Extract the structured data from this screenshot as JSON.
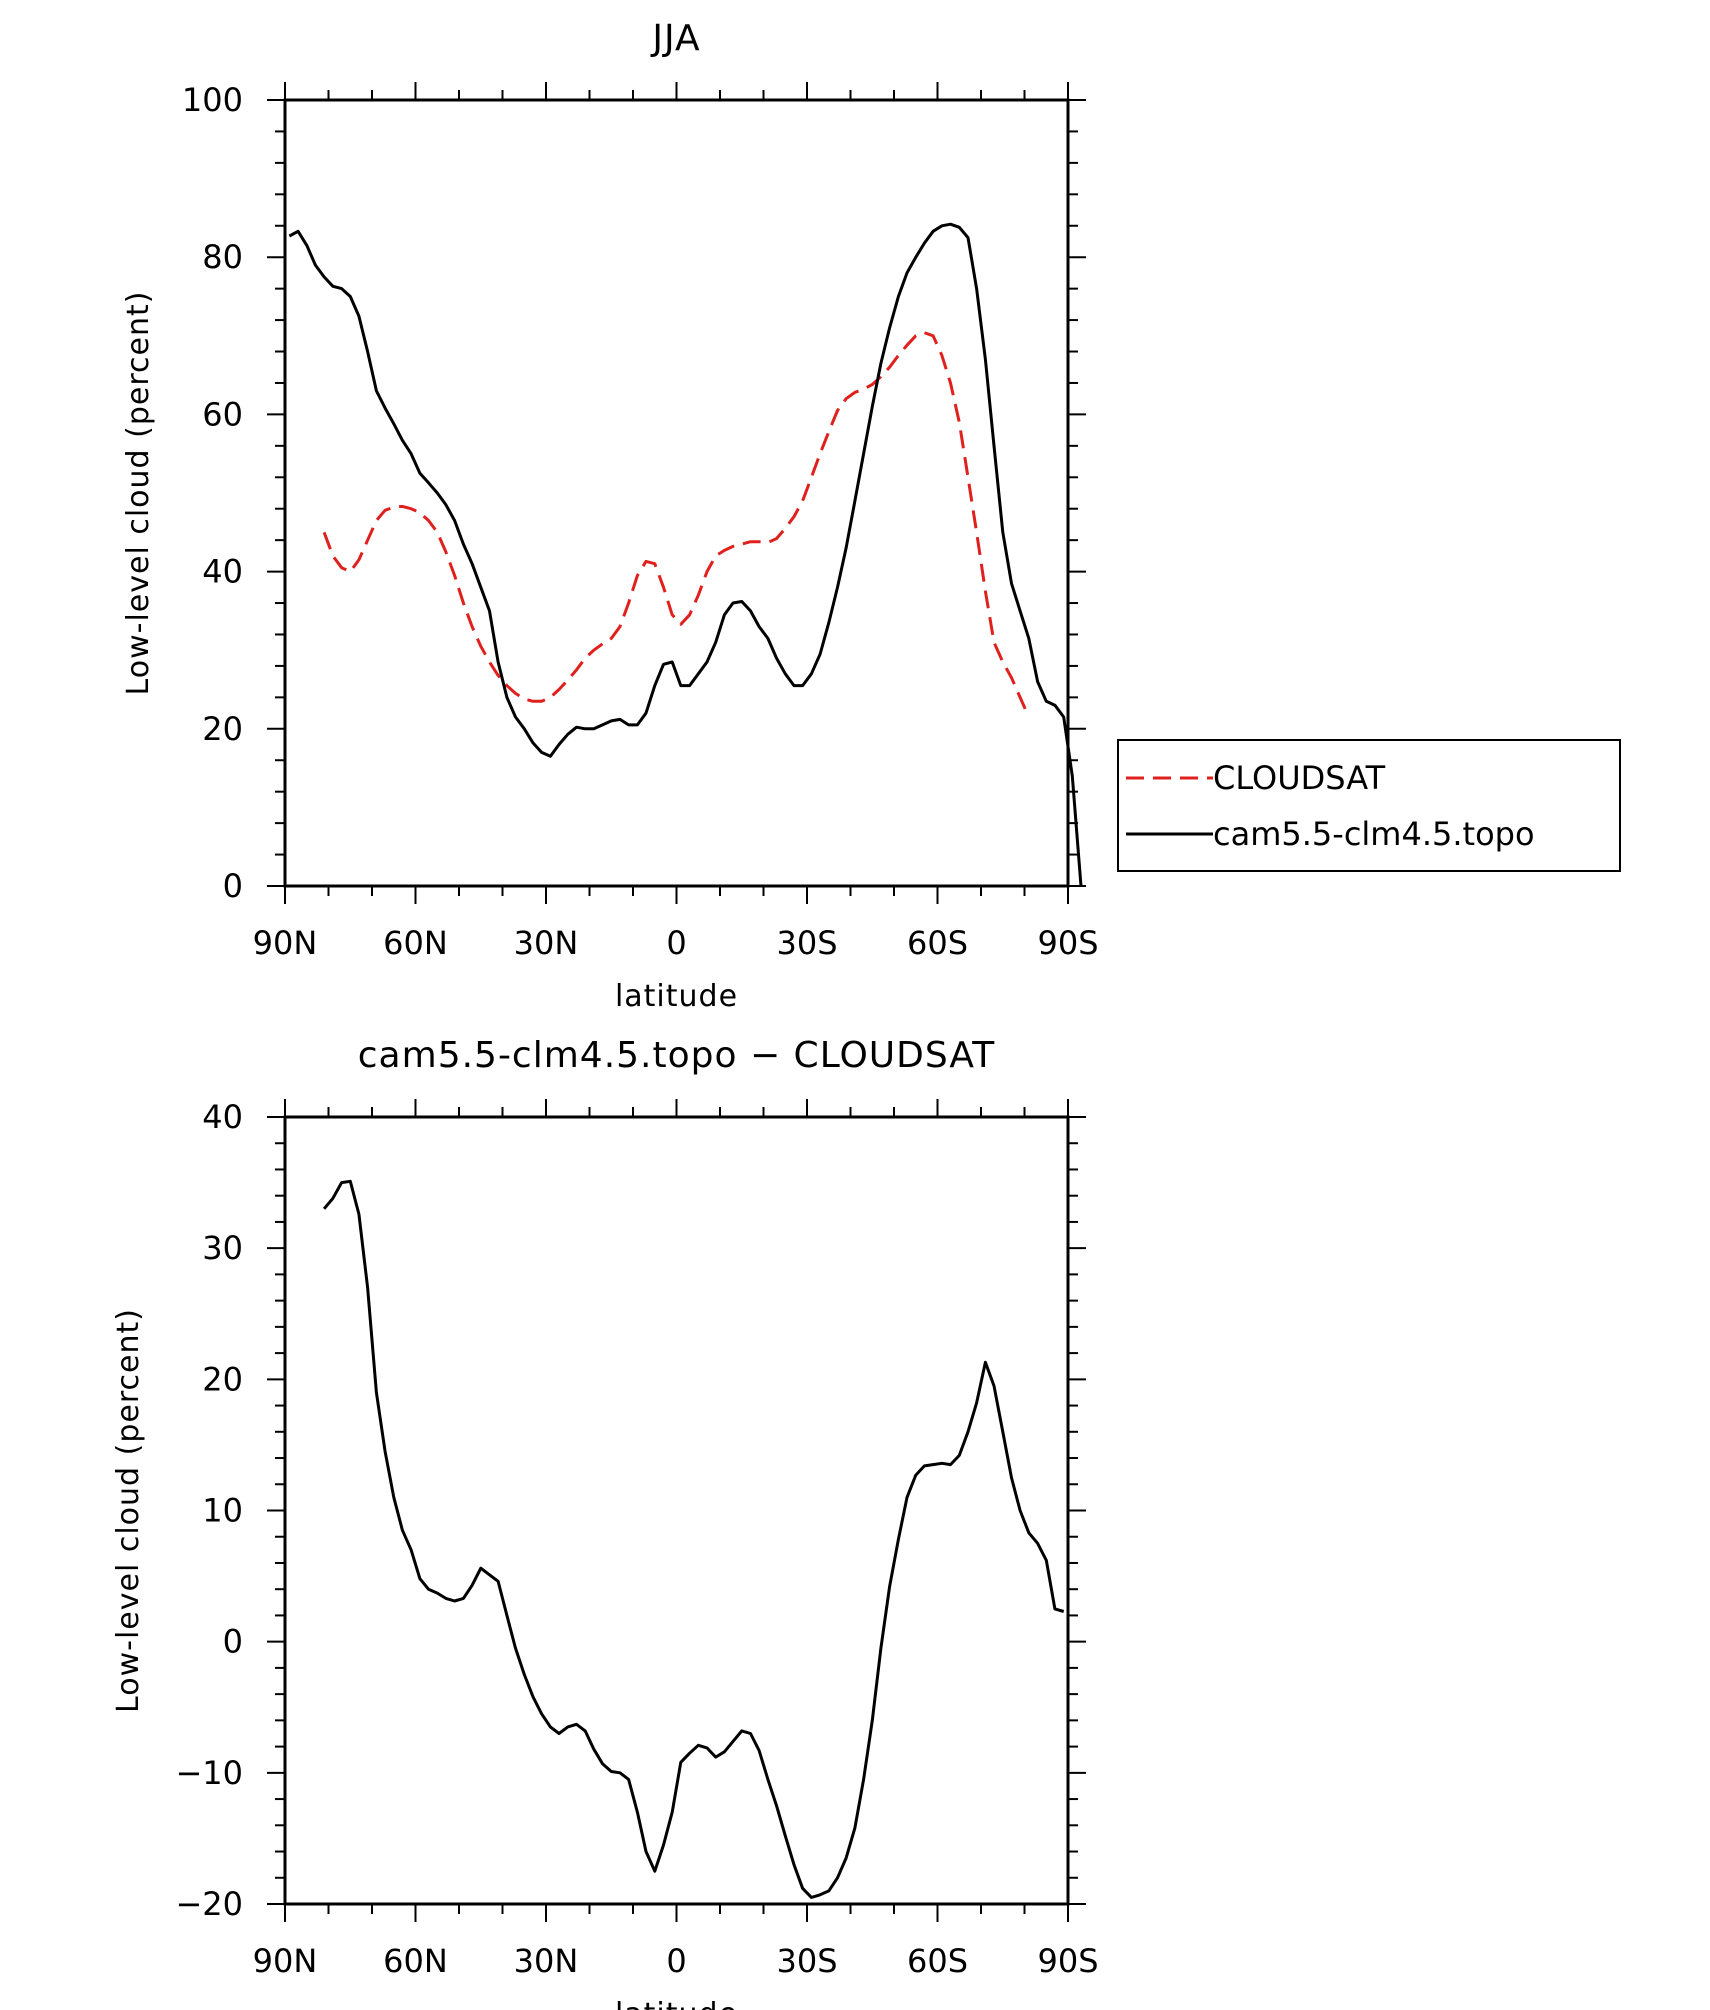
{
  "chart_data": [
    {
      "type": "line",
      "title": "JJA",
      "xlabel": "latitude",
      "ylabel": "Low-level cloud (percent)",
      "xlim": [
        90,
        -90
      ],
      "ylim": [
        0,
        100
      ],
      "yticks": [
        0,
        20,
        40,
        60,
        80,
        100
      ],
      "xticks": [
        {
          "value": 90,
          "label": "90N"
        },
        {
          "value": 60,
          "label": "60N"
        },
        {
          "value": 30,
          "label": "30N"
        },
        {
          "value": 0,
          "label": "0"
        },
        {
          "value": -30,
          "label": "30S"
        },
        {
          "value": -60,
          "label": "60S"
        },
        {
          "value": -90,
          "label": "90S"
        }
      ],
      "legend": {
        "position": "right",
        "entries": [
          "CLOUDSAT",
          "cam5.5-clm4.5.topo"
        ]
      },
      "series": [
        {
          "name": "CLOUDSAT",
          "color": "#e0201c",
          "dash": true,
          "points": [
            [
              81,
              45
            ],
            [
              79,
              42
            ],
            [
              77,
              40.5
            ],
            [
              75,
              40
            ],
            [
              73,
              41.5
            ],
            [
              71,
              44
            ],
            [
              69,
              46.5
            ],
            [
              67,
              47.8
            ],
            [
              65,
              48.2
            ],
            [
              63,
              48.3
            ],
            [
              61,
              48
            ],
            [
              59,
              47.5
            ],
            [
              57,
              46.5
            ],
            [
              55,
              45
            ],
            [
              53,
              42.5
            ],
            [
              51,
              39.5
            ],
            [
              49,
              36
            ],
            [
              47,
              33
            ],
            [
              45,
              30.5
            ],
            [
              43,
              28.5
            ],
            [
              41,
              26.8
            ],
            [
              39,
              25.5
            ],
            [
              37,
              24.5
            ],
            [
              35,
              23.8
            ],
            [
              33,
              23.5
            ],
            [
              31,
              23.5
            ],
            [
              29,
              24
            ],
            [
              27,
              25
            ],
            [
              25,
              26.2
            ],
            [
              23,
              27.5
            ],
            [
              21,
              29
            ],
            [
              19,
              30
            ],
            [
              17,
              30.8
            ],
            [
              15,
              31.5
            ],
            [
              13,
              33
            ],
            [
              11,
              36
            ],
            [
              9,
              39.5
            ],
            [
              7,
              41.3
            ],
            [
              5,
              41
            ],
            [
              3,
              38
            ],
            [
              1,
              34.5
            ],
            [
              -1,
              33.3
            ],
            [
              -3,
              34.5
            ],
            [
              -5,
              37
            ],
            [
              -7,
              40
            ],
            [
              -9,
              42
            ],
            [
              -11,
              42.7
            ],
            [
              -13,
              43.2
            ],
            [
              -15,
              43.5
            ],
            [
              -17,
              43.8
            ],
            [
              -19,
              43.8
            ],
            [
              -21,
              43.7
            ],
            [
              -23,
              44.2
            ],
            [
              -25,
              45.5
            ],
            [
              -27,
              47
            ],
            [
              -29,
              49
            ],
            [
              -31,
              52
            ],
            [
              -33,
              55
            ],
            [
              -35,
              57.8
            ],
            [
              -37,
              60.5
            ],
            [
              -39,
              62
            ],
            [
              -41,
              62.8
            ],
            [
              -43,
              63.2
            ],
            [
              -45,
              63.8
            ],
            [
              -47,
              64.8
            ],
            [
              -49,
              66
            ],
            [
              -51,
              67.5
            ],
            [
              -53,
              68.8
            ],
            [
              -55,
              70
            ],
            [
              -57,
              70.4
            ],
            [
              -59,
              70
            ],
            [
              -61,
              67.5
            ],
            [
              -63,
              64
            ],
            [
              -65,
              59
            ],
            [
              -67,
              52
            ],
            [
              -69,
              45
            ],
            [
              -71,
              37.5
            ],
            [
              -73,
              31
            ],
            [
              -75,
              28.5
            ],
            [
              -77,
              26.5
            ],
            [
              -79,
              24
            ],
            [
              -81,
              21.5
            ]
          ]
        },
        {
          "name": "cam5.5-clm4.5.topo",
          "color": "#000000",
          "dash": false,
          "points": [
            [
              89,
              82.7
            ],
            [
              87,
              83.3
            ],
            [
              85,
              81.5
            ],
            [
              83,
              79
            ],
            [
              81,
              77.5
            ],
            [
              79,
              76.3
            ],
            [
              77,
              76
            ],
            [
              75,
              75
            ],
            [
              73,
              72.5
            ],
            [
              71,
              68
            ],
            [
              69,
              63
            ],
            [
              67,
              60.8
            ],
            [
              65,
              58.8
            ],
            [
              63,
              56.7
            ],
            [
              61,
              55
            ],
            [
              59,
              52.5
            ],
            [
              57,
              51.3
            ],
            [
              55,
              50
            ],
            [
              53,
              48.5
            ],
            [
              51,
              46.5
            ],
            [
              49,
              43.5
            ],
            [
              47,
              41
            ],
            [
              45,
              38
            ],
            [
              43,
              35
            ],
            [
              41,
              28.5
            ],
            [
              39,
              24
            ],
            [
              37,
              21.5
            ],
            [
              35,
              20
            ],
            [
              33,
              18.2
            ],
            [
              31,
              17
            ],
            [
              29,
              16.5
            ],
            [
              27,
              18
            ],
            [
              25,
              19.3
            ],
            [
              23,
              20.2
            ],
            [
              21,
              20
            ],
            [
              19,
              20
            ],
            [
              17,
              20.5
            ],
            [
              15,
              21
            ],
            [
              13,
              21.2
            ],
            [
              11,
              20.5
            ],
            [
              9,
              20.5
            ],
            [
              7,
              22
            ],
            [
              5,
              25.5
            ],
            [
              3,
              28.2
            ],
            [
              1,
              28.5
            ],
            [
              -1,
              25.5
            ],
            [
              -3,
              25.5
            ],
            [
              -5,
              27
            ],
            [
              -7,
              28.5
            ],
            [
              -9,
              31
            ],
            [
              -11,
              34.5
            ],
            [
              -13,
              36
            ],
            [
              -15,
              36.2
            ],
            [
              -17,
              35
            ],
            [
              -19,
              33
            ],
            [
              -21,
              31.5
            ],
            [
              -23,
              29
            ],
            [
              -25,
              27
            ],
            [
              -27,
              25.5
            ],
            [
              -29,
              25.5
            ],
            [
              -31,
              27
            ],
            [
              -33,
              29.5
            ],
            [
              -35,
              33.5
            ],
            [
              -37,
              38
            ],
            [
              -39,
              43
            ],
            [
              -41,
              49
            ],
            [
              -43,
              55
            ],
            [
              -45,
              61
            ],
            [
              -47,
              66.5
            ],
            [
              -49,
              71
            ],
            [
              -51,
              75
            ],
            [
              -53,
              78
            ],
            [
              -55,
              80
            ],
            [
              -57,
              81.8
            ],
            [
              -59,
              83.3
            ],
            [
              -61,
              84
            ],
            [
              -63,
              84.2
            ],
            [
              -65,
              83.8
            ],
            [
              -67,
              82.5
            ],
            [
              -69,
              76
            ],
            [
              -71,
              67
            ],
            [
              -73,
              56
            ],
            [
              -75,
              45
            ],
            [
              -77,
              38.5
            ],
            [
              -79,
              35
            ],
            [
              -81,
              31.5
            ],
            [
              -83,
              26
            ],
            [
              -85,
              23.5
            ],
            [
              -87,
              23
            ],
            [
              -89,
              21.5
            ],
            [
              -91,
              14
            ],
            [
              -93,
              0
            ]
          ]
        }
      ]
    },
    {
      "type": "line",
      "title": "cam5.5-clm4.5.topo − CLOUDSAT",
      "xlabel": "latitude",
      "ylabel": "Low-level cloud (percent)",
      "xlim": [
        90,
        -90
      ],
      "ylim": [
        -20,
        40
      ],
      "yticks": [
        -20,
        -10,
        0,
        10,
        20,
        30,
        40
      ],
      "xticks": [
        {
          "value": 90,
          "label": "90N"
        },
        {
          "value": 60,
          "label": "60N"
        },
        {
          "value": 30,
          "label": "30N"
        },
        {
          "value": 0,
          "label": "0"
        },
        {
          "value": -30,
          "label": "30S"
        },
        {
          "value": -60,
          "label": "60S"
        },
        {
          "value": -90,
          "label": "90S"
        }
      ],
      "series": [
        {
          "name": "cam5.5-clm4.5.topo - CLOUDSAT",
          "color": "#000000",
          "dash": false,
          "points": [
            [
              81,
              33
            ],
            [
              79,
              33.8
            ],
            [
              77,
              35
            ],
            [
              75,
              35.1
            ],
            [
              73,
              32.6
            ],
            [
              71,
              27
            ],
            [
              69,
              19
            ],
            [
              67,
              14.5
            ],
            [
              65,
              11
            ],
            [
              63,
              8.5
            ],
            [
              61,
              7
            ],
            [
              59,
              4.8
            ],
            [
              57,
              4
            ],
            [
              55,
              3.7
            ],
            [
              53,
              3.3
            ],
            [
              51,
              3.1
            ],
            [
              49,
              3.3
            ],
            [
              47,
              4.3
            ],
            [
              45,
              5.6
            ],
            [
              43,
              5.1
            ],
            [
              41,
              4.6
            ],
            [
              39,
              2
            ],
            [
              37,
              -0.5
            ],
            [
              35,
              -2.5
            ],
            [
              33,
              -4.2
            ],
            [
              31,
              -5.5
            ],
            [
              29,
              -6.5
            ],
            [
              27,
              -7
            ],
            [
              25,
              -6.5
            ],
            [
              23,
              -6.3
            ],
            [
              21,
              -6.8
            ],
            [
              19,
              -8.2
            ],
            [
              17,
              -9.3
            ],
            [
              15,
              -9.9
            ],
            [
              13,
              -10
            ],
            [
              11,
              -10.5
            ],
            [
              9,
              -13
            ],
            [
              7,
              -16
            ],
            [
              5,
              -17.5
            ],
            [
              3,
              -15.5
            ],
            [
              1,
              -13
            ],
            [
              -1,
              -9.2
            ],
            [
              -3,
              -8.5
            ],
            [
              -5,
              -7.9
            ],
            [
              -7,
              -8.1
            ],
            [
              -9,
              -8.8
            ],
            [
              -11,
              -8.4
            ],
            [
              -13,
              -7.6
            ],
            [
              -15,
              -6.8
            ],
            [
              -17,
              -7
            ],
            [
              -19,
              -8.3
            ],
            [
              -21,
              -10.5
            ],
            [
              -23,
              -12.5
            ],
            [
              -25,
              -14.8
            ],
            [
              -27,
              -17
            ],
            [
              -29,
              -18.8
            ],
            [
              -31,
              -19.5
            ],
            [
              -33,
              -19.3
            ],
            [
              -35,
              -19
            ],
            [
              -37,
              -18
            ],
            [
              -39,
              -16.5
            ],
            [
              -41,
              -14.2
            ],
            [
              -43,
              -10.5
            ],
            [
              -45,
              -6
            ],
            [
              -47,
              -0.5
            ],
            [
              -49,
              4.2
            ],
            [
              -51,
              7.8
            ],
            [
              -53,
              11
            ],
            [
              -55,
              12.7
            ],
            [
              -57,
              13.4
            ],
            [
              -59,
              13.5
            ],
            [
              -61,
              13.6
            ],
            [
              -63,
              13.5
            ],
            [
              -65,
              14.2
            ],
            [
              -67,
              16
            ],
            [
              -69,
              18.2
            ],
            [
              -71,
              21.3
            ],
            [
              -73,
              19.5
            ],
            [
              -75,
              16
            ],
            [
              -77,
              12.5
            ],
            [
              -79,
              10
            ],
            [
              -81,
              8.3
            ],
            [
              -83,
              7.5
            ],
            [
              -85,
              6.2
            ],
            [
              -87,
              2.5
            ],
            [
              -89,
              2.3
            ]
          ]
        }
      ]
    }
  ]
}
